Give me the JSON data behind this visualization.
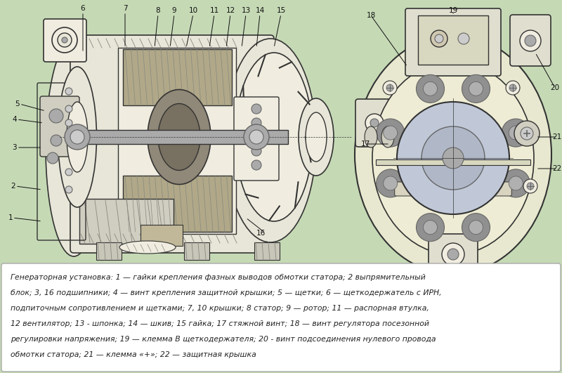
{
  "background_color": "#c5d9b5",
  "fig_width": 8.0,
  "fig_height": 5.31,
  "caption_bg": "#ffffff",
  "caption_text_line1": "Генераторная установка: 1 — гайки крепления фазных выводов обмотки статора; 2 выпрямительный",
  "caption_text_line2": "блок; 3, 16 подшипники; 4 — винт крепления защитной крышки; 5 — щетки; 6 — щеткодержатель с ИРН,",
  "caption_text_line3": "подпиточным сопротивлением и щетками; 7, 10 крышки; 8 статор; 9 — ротор; 11 — распорная втулка,",
  "caption_text_line4": "12 вентилятор; 13 - шпонка; 14 — шкив; 15 гайка; 17 стяжной винт; 18 — винт регулятора посезонной",
  "caption_text_line5": "регулировки напряжения; 19 — клемма В щеткодержателя; 20 - винт подсоединения нулевого провода",
  "caption_text_line6": "обмотки статора; 21 — клемма «+»; 22 — защитная крышка",
  "label_fontsize": 7.5,
  "caption_fontsize": 7.8
}
